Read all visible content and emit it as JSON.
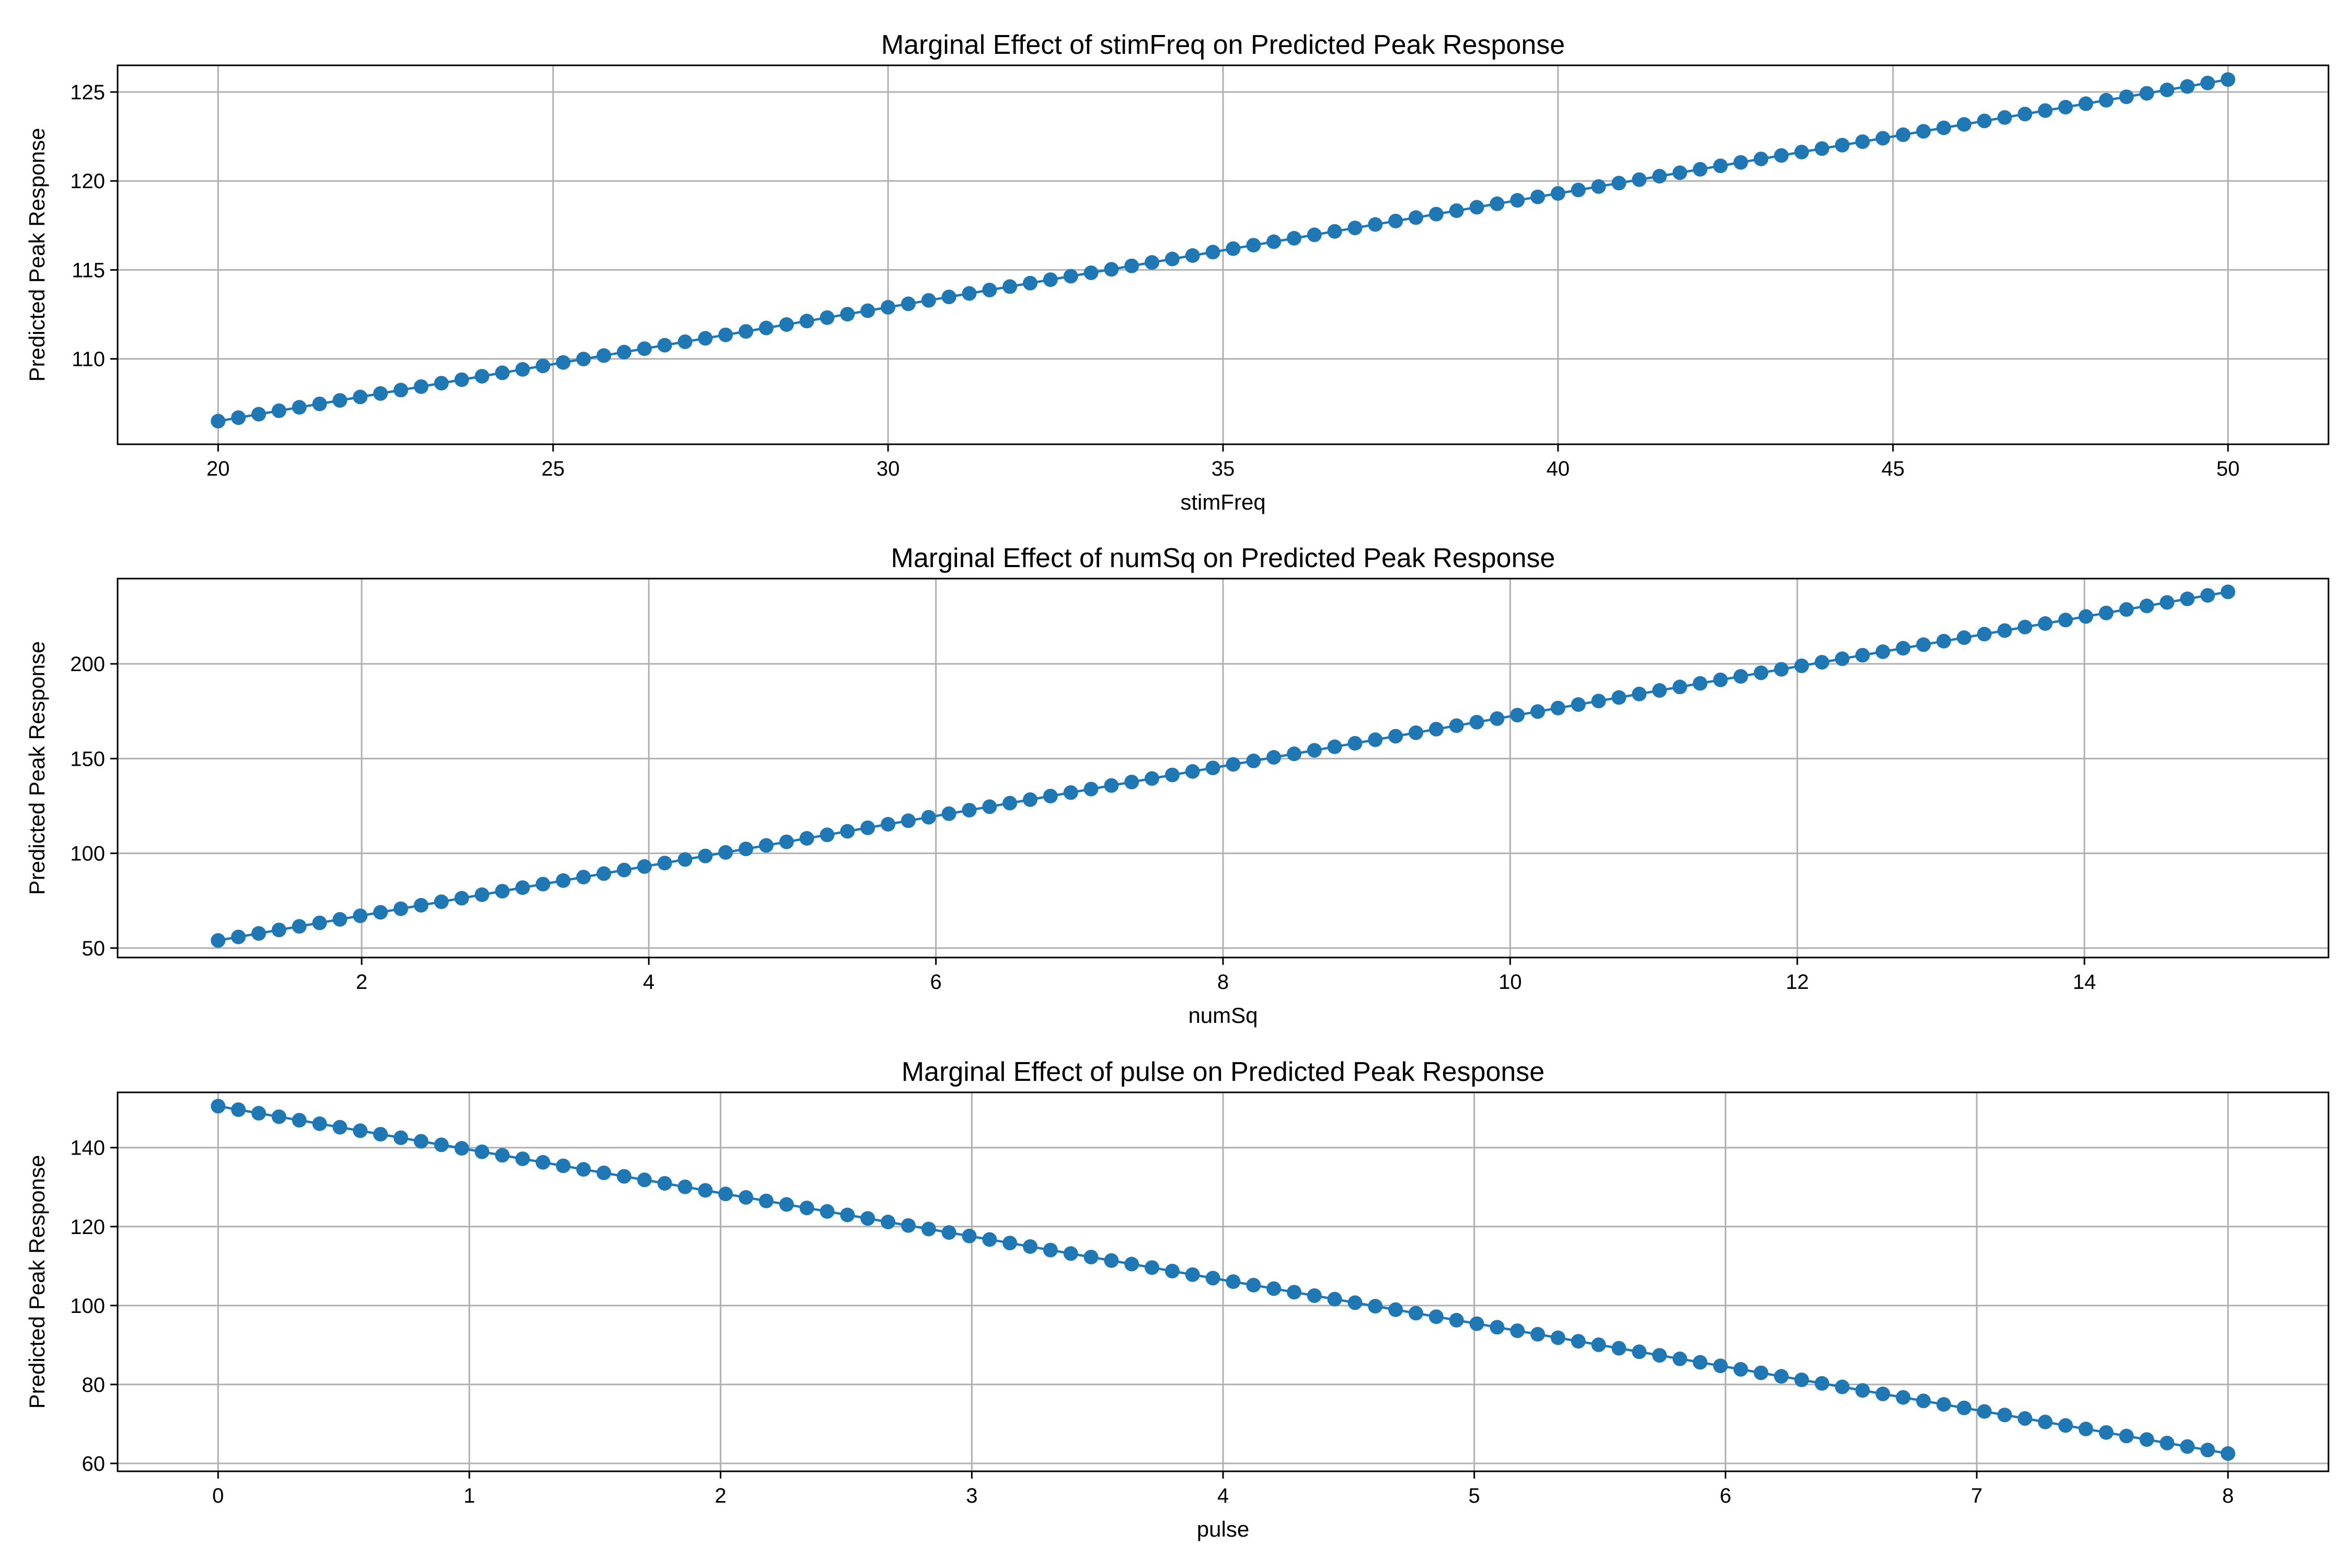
{
  "colors": {
    "series": "#1f77b4",
    "grid": "#b0b0b0"
  },
  "chart_data": [
    {
      "type": "line",
      "title": "Marginal Effect of stimFreq on Predicted Peak Response",
      "xlabel": "stimFreq",
      "ylabel": "Predicted Peak Response",
      "xlim": [
        18.5,
        51.5
      ],
      "ylim": [
        105.2,
        126.5
      ],
      "xticks": [
        20,
        25,
        30,
        35,
        40,
        45,
        50
      ],
      "yticks": [
        110,
        115,
        120,
        125
      ],
      "grid": true,
      "marker": "circle",
      "line": {
        "x_start": 20,
        "x_end": 50,
        "y_start": 106.5,
        "y_end": 125.7,
        "n_points": 100
      }
    },
    {
      "type": "line",
      "title": "Marginal Effect of numSq on Predicted Peak Response",
      "xlabel": "numSq",
      "ylabel": "Predicted Peak Response",
      "xlim": [
        0.3,
        15.7
      ],
      "ylim": [
        45,
        245
      ],
      "xticks": [
        2,
        4,
        6,
        8,
        10,
        12,
        14
      ],
      "yticks": [
        50,
        100,
        150,
        200
      ],
      "grid": true,
      "marker": "circle",
      "line": {
        "x_start": 1,
        "x_end": 15,
        "y_start": 54,
        "y_end": 238,
        "n_points": 100
      }
    },
    {
      "type": "line",
      "title": "Marginal Effect of pulse on Predicted Peak Response",
      "xlabel": "pulse",
      "ylabel": "Predicted Peak Response",
      "xlim": [
        -0.4,
        8.4
      ],
      "ylim": [
        58,
        154
      ],
      "xticks": [
        0,
        1,
        2,
        3,
        4,
        5,
        6,
        7,
        8
      ],
      "yticks": [
        60,
        80,
        100,
        120,
        140
      ],
      "grid": true,
      "marker": "circle",
      "line": {
        "x_start": 0,
        "x_end": 8,
        "y_start": 150.5,
        "y_end": 62.5,
        "n_points": 100
      }
    }
  ]
}
